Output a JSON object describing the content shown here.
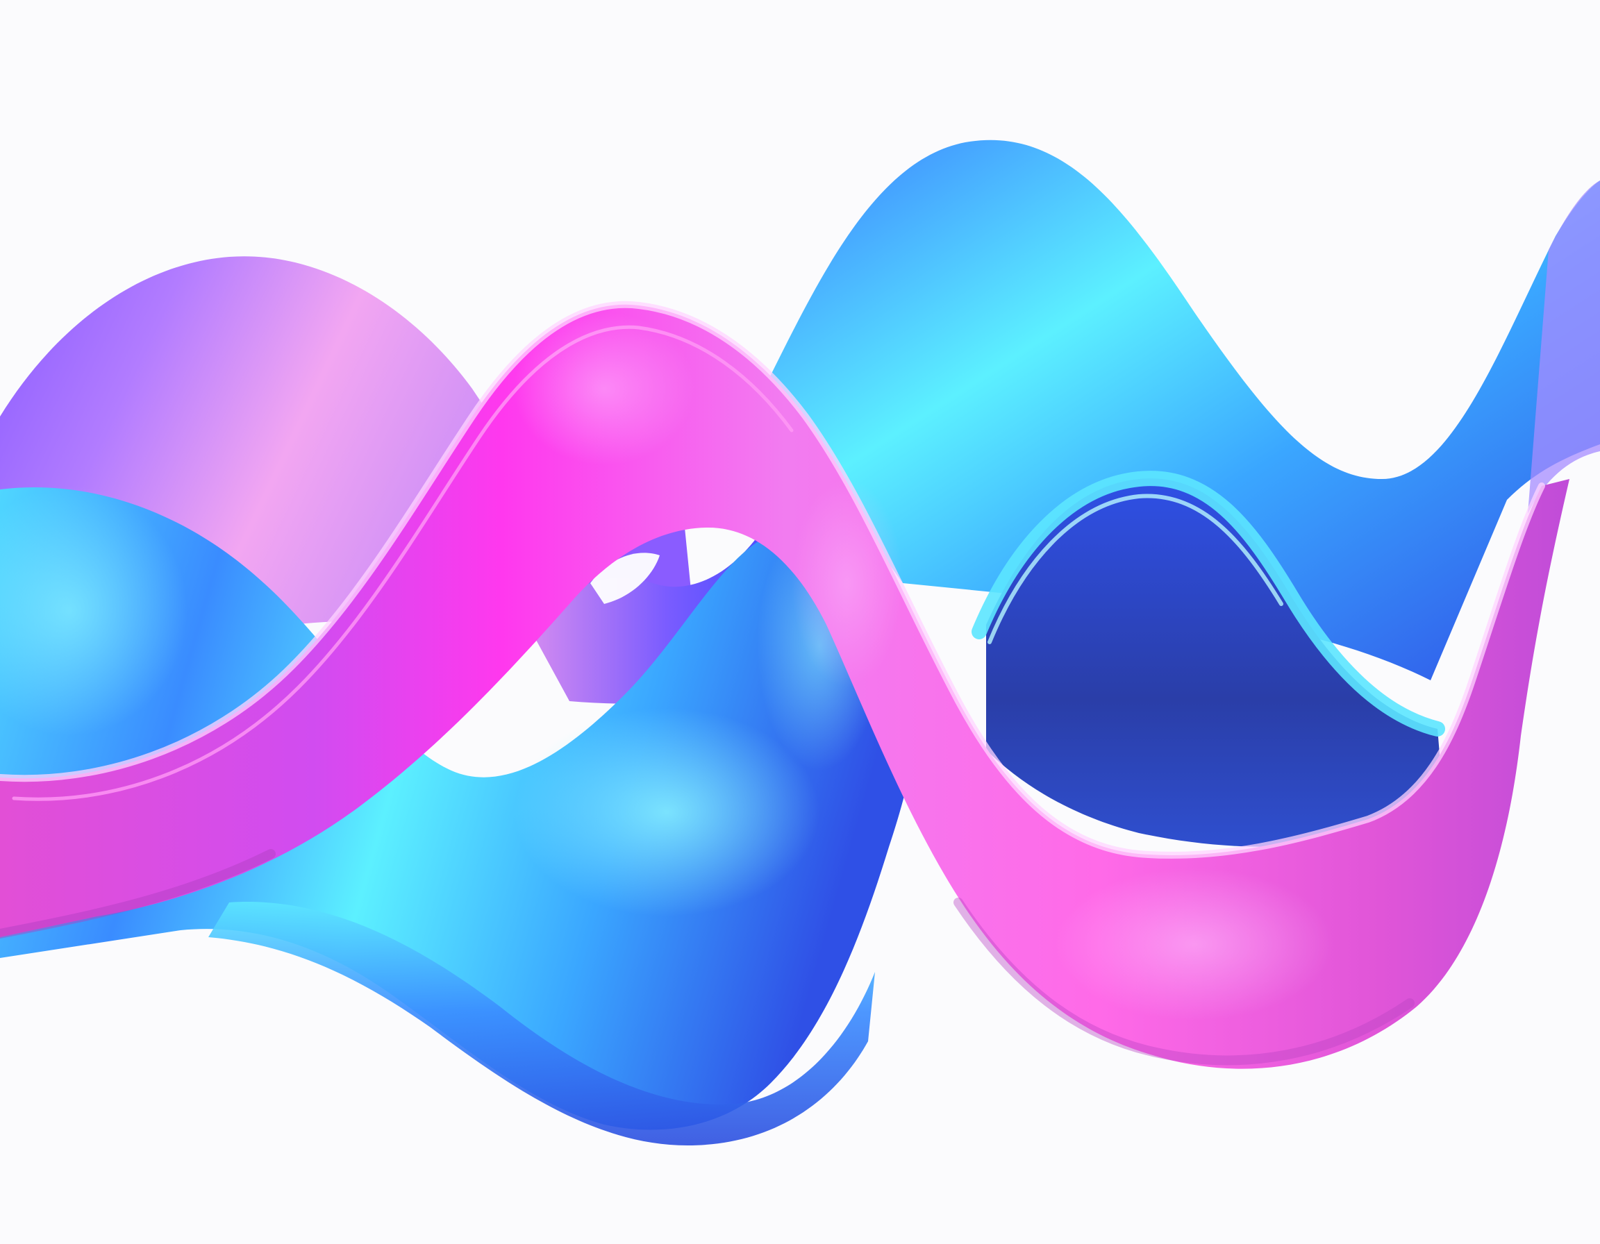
{
  "artwork": {
    "subject": "abstract-3d-wave-ribbons",
    "colors": {
      "background": "#fbfbfd",
      "cyan": "#5cf0ff",
      "sky_blue": "#3aa6ff",
      "royal_blue": "#2f50e6",
      "deep_blue": "#2a3ea8",
      "violet": "#8a5cff",
      "lavender_pink": "#f2a6f2",
      "magenta": "#ff38ee",
      "hot_pink": "#e24fd6",
      "highlight": "#ffd4ff"
    }
  }
}
